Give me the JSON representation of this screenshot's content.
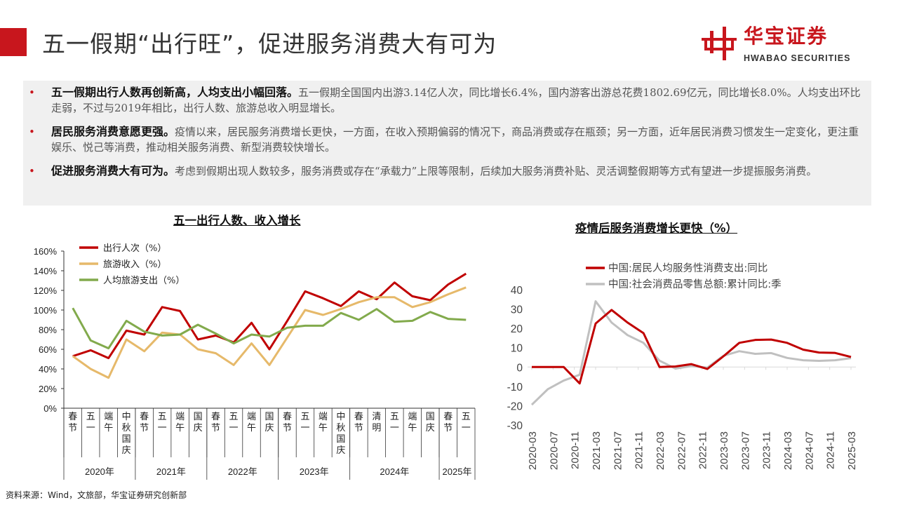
{
  "header": {
    "title": "五一假期“出行旺”，促进服务消费大有可为",
    "logo_cn": "华宝证券",
    "logo_en": "HWABAO SECURITIES",
    "accent": "#c8161d"
  },
  "bullets": [
    {
      "bold": "五一假期出行人数再创新高，人均支出小幅回落。",
      "text": "五一假期全国国内出游3.14亿人次，同比增长6.4%，国内游客出游总花费1802.69亿元，同比增长8.0%。人均支出环比走弱，不过与2019年相比，出行人数、旅游总收入明显增长。"
    },
    {
      "bold": "居民服务消费意愿更强。",
      "text": "疫情以来，居民服务消费增长更快，一方面，在收入预期偏弱的情况下，商品消费或存在瓶颈；另一方面，近年居民消费习惯发生一定变化，更注重娱乐、悦己等消费，推动相关服务消费、新型消费较快增长。"
    },
    {
      "bold": "促进服务消费大有可为。",
      "text": "考虑到假期出现人数较多，服务消费或存在“承载力”上限等限制，后续加大服务消费补贴、灵活调整假期等方式有望进一步提振服务消费。"
    }
  ],
  "source": "资料来源：Wind，文旅部，华宝证券研究创新部",
  "chart_data": [
    {
      "type": "line",
      "title": "五一出行人数、收入增长",
      "ylim": [
        0,
        160
      ],
      "yticks": [
        "0%",
        "20%",
        "40%",
        "60%",
        "80%",
        "100%",
        "120%",
        "140%",
        "160%"
      ],
      "legend": "top-left",
      "categories": [
        "春节",
        "五一",
        "端午",
        "中秋国庆",
        "春节",
        "五一",
        "端午",
        "国庆",
        "春节",
        "五一",
        "端午",
        "国庆",
        "春节",
        "五一",
        "端午",
        "中秋国庆",
        "春节",
        "清明",
        "五一",
        "端午",
        "国庆",
        "春节",
        "五一"
      ],
      "groups": [
        {
          "label": "2020年",
          "count": 4
        },
        {
          "label": "2021年",
          "count": 4
        },
        {
          "label": "2022年",
          "count": 4
        },
        {
          "label": "2023年",
          "count": 4
        },
        {
          "label": "2024年",
          "count": 5
        },
        {
          "label": "2025年",
          "count": 2
        }
      ],
      "series": [
        {
          "name": "出行人次（%）",
          "color": "#c00000",
          "values": [
            53,
            59,
            51,
            79,
            75,
            103,
            99,
            70,
            74,
            67,
            87,
            60,
            89,
            119,
            112,
            104,
            119,
            111,
            128,
            114,
            110,
            126,
            137
          ]
        },
        {
          "name": "旅游收入（%）",
          "color": "#e6b96a",
          "values": [
            53,
            40,
            31,
            70,
            58,
            77,
            75,
            60,
            56,
            44,
            66,
            44,
            72,
            100,
            95,
            101,
            108,
            113,
            113,
            103,
            108,
            116,
            123
          ]
        },
        {
          "name": "人均旅游支出（%）",
          "color": "#82aa4c",
          "values": [
            102,
            69,
            61,
            89,
            78,
            74,
            75,
            85,
            76,
            66,
            75,
            73,
            82,
            84,
            84,
            97,
            90,
            101,
            88,
            89,
            98,
            91,
            90
          ]
        }
      ]
    },
    {
      "type": "line",
      "title": "疫情后服务消费增长更快（%）",
      "ylim": [
        -30,
        40
      ],
      "yticks": [
        "-30",
        "-20",
        "-10",
        "0",
        "10",
        "20",
        "30",
        "40"
      ],
      "legend": "top",
      "xticks": [
        "2020-03",
        "2020-07",
        "2020-11",
        "2021-03",
        "2021-07",
        "2021-11",
        "2022-03",
        "2022-07",
        "2022-11",
        "2023-03",
        "2023-07",
        "2023-11",
        "2024-03",
        "2024-07",
        "2024-11",
        "2025-03"
      ],
      "x": [
        "2020-03",
        "2020-06",
        "2020-09",
        "2020-12",
        "2021-03",
        "2021-06",
        "2021-09",
        "2021-12",
        "2022-03",
        "2022-06",
        "2022-09",
        "2022-12",
        "2023-03",
        "2023-06",
        "2023-09",
        "2023-12",
        "2024-03",
        "2024-06",
        "2024-09",
        "2024-12",
        "2025-03"
      ],
      "series": [
        {
          "name": "中国:居民人均服务性消费支出:同比",
          "color": "#c00000",
          "values": [
            0,
            0,
            0,
            -8.5,
            22.5,
            29.5,
            23,
            17.5,
            0,
            0.3,
            1.5,
            -1,
            5.5,
            12.5,
            14,
            14.2,
            12.5,
            9,
            7.5,
            7.3,
            5.2
          ]
        },
        {
          "name": "中国:社会消费品零售总额:累计同比:季",
          "color": "#c0c0c0",
          "values": [
            -19.5,
            -11.5,
            -7,
            -4,
            34,
            23,
            16.5,
            12.5,
            3.3,
            -0.8,
            0.5,
            -0.3,
            5.8,
            8.2,
            6.8,
            7.2,
            4.7,
            3.5,
            3.2,
            3.5,
            4.6
          ]
        }
      ]
    }
  ]
}
